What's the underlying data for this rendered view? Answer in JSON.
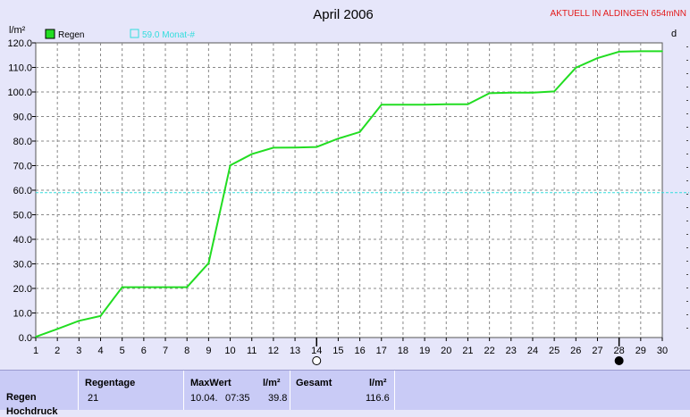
{
  "chart_data": {
    "type": "line",
    "title": "April 2006",
    "banner": "AKTUELL IN ALDINGEN 654mNN",
    "ylabel": "l/m²",
    "right_axis_label": "d",
    "ylim": [
      0,
      120
    ],
    "xlim": [
      1,
      30
    ],
    "y_ticks": [
      "0.0",
      "10.0",
      "20.0",
      "30.0",
      "40.0",
      "50.0",
      "60.0",
      "70.0",
      "80.0",
      "90.0",
      "100.0",
      "110.0",
      "120.0"
    ],
    "x_ticks": [
      "1",
      "2",
      "3",
      "4",
      "5",
      "6",
      "7",
      "8",
      "9",
      "10",
      "11",
      "12",
      "13",
      "14",
      "15",
      "16",
      "17",
      "18",
      "19",
      "20",
      "21",
      "22",
      "23",
      "24",
      "25",
      "26",
      "27",
      "28",
      "29",
      "30"
    ],
    "grid": true,
    "legend": [
      {
        "name": "Regen",
        "color": "#22dd22"
      },
      {
        "name": "59.0 Monat-#",
        "color": "#33dddd"
      }
    ],
    "series": [
      {
        "name": "Regen",
        "color": "#22dd22",
        "x": [
          1,
          2,
          3,
          4,
          5,
          6,
          7,
          8,
          9,
          10,
          11,
          12,
          13,
          14,
          15,
          16,
          17,
          18,
          19,
          20,
          21,
          22,
          23,
          24,
          25,
          26,
          27,
          28,
          29,
          30
        ],
        "values": [
          0.3,
          3.5,
          6.8,
          8.8,
          20.5,
          20.5,
          20.5,
          20.5,
          30.3,
          70.1,
          74.7,
          77.3,
          77.4,
          77.6,
          81.0,
          83.7,
          94.8,
          94.8,
          94.8,
          95.0,
          95.0,
          99.5,
          99.7,
          99.7,
          100.2,
          109.9,
          113.8,
          116.4,
          116.6,
          116.6
        ]
      }
    ],
    "reference_line": {
      "name": "59.0 Monat-#",
      "value": 59.0,
      "color": "#33dddd"
    },
    "moon_markers": [
      {
        "day": 14,
        "phase": "full-moon-icon"
      },
      {
        "day": 28,
        "phase": "new-moon-icon"
      }
    ]
  },
  "stats": {
    "row1_label": "Regen",
    "row2_label": "Hochdruck",
    "regentage_header": "Regentage",
    "regentage_value": "21",
    "maxwert_header": "MaxWert",
    "maxwert_unit": "l/m²",
    "maxwert_date": "10.04.",
    "maxwert_time": "07:35",
    "maxwert_value": "39.8",
    "gesamt_header": "Gesamt",
    "gesamt_unit": "l/m²",
    "gesamt_value": "116.6"
  }
}
